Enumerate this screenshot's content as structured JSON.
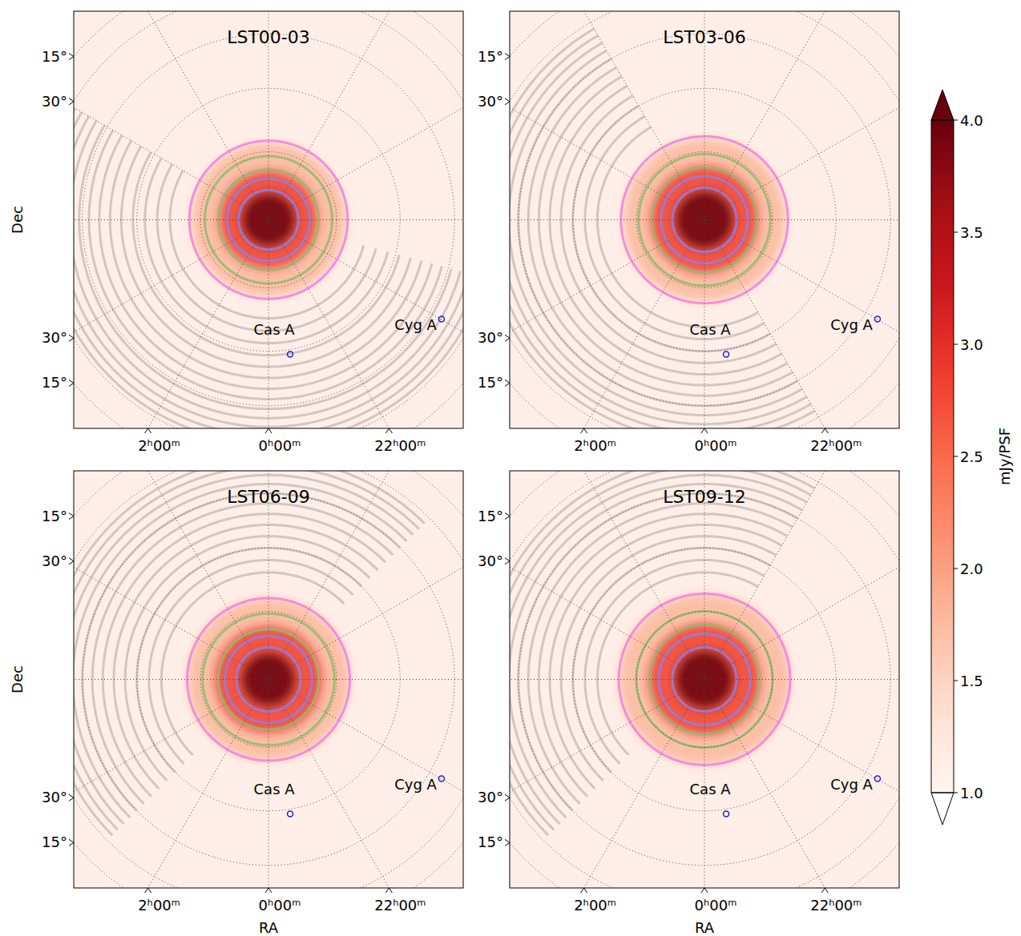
{
  "chart_data": {
    "type": "sky_map",
    "x_label": "RA",
    "y_label": "Dec",
    "grid": true,
    "xticks": [
      {
        "value": 2,
        "label": "2ʰ00ᵐ"
      },
      {
        "value": 0,
        "label": "0ʰ00ᵐ"
      },
      {
        "value": 22,
        "label": "22ʰ00ᵐ"
      }
    ],
    "yticks": [
      {
        "value": 15,
        "label": "15°"
      },
      {
        "value": 30,
        "label": "30°"
      }
    ],
    "ra_grid": [
      0,
      2,
      4,
      6,
      8,
      10,
      12,
      14,
      16,
      18,
      20,
      22
    ],
    "dec_grid": [
      15,
      30,
      45,
      60,
      75
    ],
    "background_value": 1.1,
    "sources": [
      {
        "name": "Cas A",
        "ra": 23.39,
        "dec": 58.8
      },
      {
        "name": "Cyg A",
        "ra": 19.99,
        "dec": 40.7
      }
    ],
    "colorbar": {
      "label": "mJy/PSF",
      "range": [
        1,
        4
      ],
      "ticks": [
        {
          "value": 1,
          "label": "1.0"
        },
        {
          "value": 1.5,
          "label": "1.5"
        },
        {
          "value": 2,
          "label": "2.0"
        },
        {
          "value": 2.5,
          "label": "2.5"
        },
        {
          "value": 3,
          "label": "3.0"
        },
        {
          "value": 3.5,
          "label": "3.5"
        },
        {
          "value": 4,
          "label": "4.0"
        }
      ]
    },
    "panels": [
      {
        "title": "LST00-03",
        "emission": [
          {
            "radius_deg": 17,
            "value": 1.8
          },
          {
            "radius_deg": 11,
            "value": 2.8
          },
          {
            "radius_deg": 6,
            "value": 4
          }
        ],
        "contours": [
          {
            "color": "#c9bfb9",
            "radii_deg": [
              22,
              25,
              28,
              31,
              34,
              37,
              40,
              43,
              46,
              49,
              52,
              55,
              58
            ],
            "ra_from": 19,
            "ra_to": 8
          },
          {
            "color": "#f47ee0",
            "radii_deg": [
              17.5
            ],
            "ra_from": 0,
            "ra_to": 24
          },
          {
            "color": "#8fba70",
            "radii_deg": [
              11,
              14
            ],
            "ra_from": 0,
            "ra_to": 24
          },
          {
            "color": "#8f7fe8",
            "radii_deg": [
              6.5,
              9
            ],
            "ra_from": 0,
            "ra_to": 24
          }
        ]
      },
      {
        "title": "LST03-06",
        "emission": [
          {
            "radius_deg": 18,
            "value": 1.8
          },
          {
            "radius_deg": 12,
            "value": 2.8
          },
          {
            "radius_deg": 6.5,
            "value": 4
          }
        ],
        "contours": [
          {
            "color": "#c9bfb9",
            "radii_deg": [
              24,
              27,
              30,
              33,
              36,
              39,
              42,
              45,
              48,
              51,
              54,
              57
            ],
            "ra_from": 22,
            "ra_to": 10
          },
          {
            "color": "#f47ee0",
            "radii_deg": [
              18.5
            ],
            "ra_from": 0,
            "ra_to": 24
          },
          {
            "color": "#8fba70",
            "radii_deg": [
              11.5,
              14.5
            ],
            "ra_from": 0,
            "ra_to": 24
          },
          {
            "color": "#8f7fe8",
            "radii_deg": [
              7,
              9.5
            ],
            "ra_from": 0,
            "ra_to": 24
          }
        ]
      },
      {
        "title": "LST06-09",
        "emission": [
          {
            "radius_deg": 18,
            "value": 1.8
          },
          {
            "radius_deg": 12,
            "value": 2.8
          },
          {
            "radius_deg": 6,
            "value": 4
          }
        ],
        "contours": [
          {
            "color": "#c9bfb9",
            "radii_deg": [
              24,
              27,
              30,
              33,
              36,
              39,
              42,
              45,
              48,
              51,
              54,
              57
            ],
            "ra_from": 3,
            "ra_to": 15
          },
          {
            "color": "#f47ee0",
            "radii_deg": [
              18
            ],
            "ra_from": 0,
            "ra_to": 24
          },
          {
            "color": "#8fba70",
            "radii_deg": [
              11,
              14.5
            ],
            "ra_from": 0,
            "ra_to": 24
          },
          {
            "color": "#8f7fe8",
            "radii_deg": [
              7,
              9.5
            ],
            "ra_from": 0,
            "ra_to": 24
          }
        ]
      },
      {
        "title": "LST09-12",
        "emission": [
          {
            "radius_deg": 19,
            "value": 1.8
          },
          {
            "radius_deg": 12.5,
            "value": 2.8
          },
          {
            "radius_deg": 6.5,
            "value": 4
          }
        ],
        "contours": [
          {
            "color": "#c9bfb9",
            "radii_deg": [
              24,
              27,
              30,
              33,
              36,
              39,
              42,
              45,
              48,
              51,
              54,
              57
            ],
            "ra_from": 3,
            "ra_to": 14
          },
          {
            "color": "#f47ee0",
            "radii_deg": [
              19
            ],
            "ra_from": 0,
            "ra_to": 24
          },
          {
            "color": "#8fba70",
            "radii_deg": [
              12,
              15
            ],
            "ra_from": 0,
            "ra_to": 24
          },
          {
            "color": "#8f7fe8",
            "radii_deg": [
              7,
              10
            ],
            "ra_from": 0,
            "ra_to": 24
          }
        ]
      }
    ]
  }
}
